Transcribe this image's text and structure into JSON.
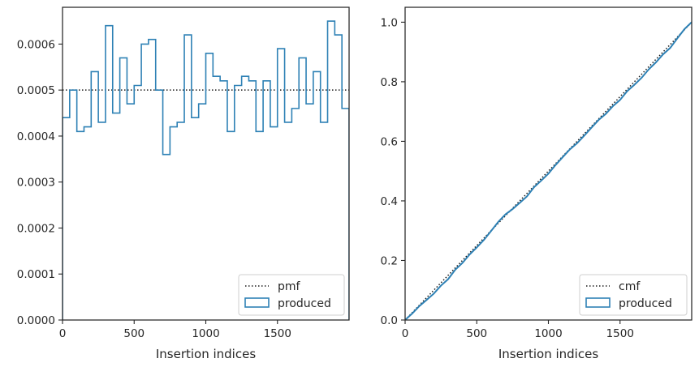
{
  "colors": {
    "produced": "#2e81b5",
    "reference": "#1a1a1a",
    "spine": "#262626",
    "legend_border": "#cfcfcf"
  },
  "chart_data": [
    {
      "type": "step",
      "xlabel": "Insertion indices",
      "ylabel": "",
      "xlim": [
        0,
        2000
      ],
      "ylim": [
        0,
        0.00068
      ],
      "xticks": [
        0,
        500,
        1000,
        1500
      ],
      "xtick_labels": [
        "0",
        "500",
        "1000",
        "1500"
      ],
      "yticks": [
        0,
        0.0001,
        0.0002,
        0.0003,
        0.0004,
        0.0005,
        0.0006
      ],
      "ytick_labels": [
        "0.0000",
        "0.0001",
        "0.0002",
        "0.0003",
        "0.0004",
        "0.0005",
        "0.0006"
      ],
      "grid": false,
      "legend_position": "lower-right",
      "legend": [
        "pmf",
        "produced"
      ],
      "series": [
        {
          "name": "pmf",
          "style": "dotted",
          "x": [
            0,
            2000
          ],
          "y": [
            0.0005,
            0.0005
          ]
        },
        {
          "name": "produced",
          "style": "step-histogram",
          "bin_edges": [
            0,
            50,
            100,
            150,
            200,
            250,
            300,
            350,
            400,
            450,
            500,
            550,
            600,
            650,
            700,
            750,
            800,
            850,
            900,
            950,
            1000,
            1050,
            1100,
            1150,
            1200,
            1250,
            1300,
            1350,
            1400,
            1450,
            1500,
            1550,
            1600,
            1650,
            1700,
            1750,
            1800,
            1850,
            1900,
            1950,
            2000
          ],
          "values": [
            0.00044,
            0.0005,
            0.00041,
            0.00042,
            0.00054,
            0.00043,
            0.00064,
            0.00045,
            0.00057,
            0.00047,
            0.00051,
            0.0006,
            0.00061,
            0.0005,
            0.00036,
            0.00042,
            0.00043,
            0.00062,
            0.00044,
            0.00047,
            0.00058,
            0.00053,
            0.00052,
            0.00041,
            0.00051,
            0.00053,
            0.00052,
            0.00041,
            0.00052,
            0.00042,
            0.00059,
            0.00043,
            0.00046,
            0.00057,
            0.00047,
            0.00054,
            0.00043,
            0.00065,
            0.00062,
            0.00046
          ]
        }
      ]
    },
    {
      "type": "line",
      "xlabel": "Insertion indices",
      "ylabel": "",
      "xlim": [
        0,
        2000
      ],
      "ylim": [
        0,
        1.05
      ],
      "xticks": [
        0,
        500,
        1000,
        1500
      ],
      "xtick_labels": [
        "0",
        "500",
        "1000",
        "1500"
      ],
      "yticks": [
        0,
        0.2,
        0.4,
        0.6,
        0.8,
        1.0
      ],
      "ytick_labels": [
        "0.0",
        "0.2",
        "0.4",
        "0.6",
        "0.8",
        "1.0"
      ],
      "grid": false,
      "legend_position": "lower-right",
      "legend": [
        "cmf",
        "produced"
      ],
      "series": [
        {
          "name": "cmf",
          "style": "dotted",
          "x": [
            0,
            2000
          ],
          "y": [
            0,
            1.0
          ]
        },
        {
          "name": "produced",
          "style": "solid",
          "x": [
            0,
            50,
            100,
            150,
            200,
            250,
            300,
            350,
            400,
            450,
            500,
            550,
            600,
            650,
            700,
            750,
            800,
            850,
            900,
            950,
            1000,
            1050,
            1100,
            1150,
            1200,
            1250,
            1300,
            1350,
            1400,
            1450,
            1500,
            1550,
            1600,
            1650,
            1700,
            1750,
            1800,
            1850,
            1900,
            1950,
            2000
          ],
          "y": [
            0,
            0.022,
            0.047,
            0.0675,
            0.0885,
            0.1155,
            0.137,
            0.169,
            0.1915,
            0.22,
            0.2435,
            0.269,
            0.299,
            0.3295,
            0.3545,
            0.3725,
            0.3935,
            0.415,
            0.446,
            0.468,
            0.4915,
            0.5205,
            0.547,
            0.573,
            0.5935,
            0.619,
            0.6455,
            0.6715,
            0.692,
            0.718,
            0.739,
            0.7685,
            0.79,
            0.813,
            0.8415,
            0.865,
            0.892,
            0.9135,
            0.946,
            0.977,
            1.0
          ]
        }
      ]
    }
  ]
}
